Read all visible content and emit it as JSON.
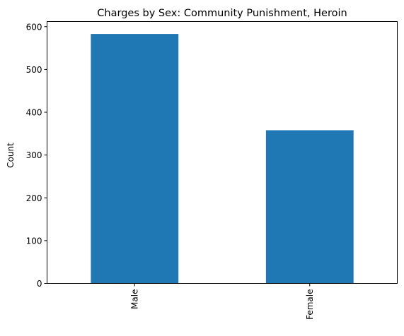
{
  "chart_data": {
    "type": "bar",
    "title": "Charges by Sex: Community Punishment, Heroin",
    "xlabel": "",
    "ylabel": "Count",
    "categories": [
      "Male",
      "Female"
    ],
    "values": [
      583,
      358
    ],
    "ylim": [
      0,
      612
    ],
    "yticks": [
      0,
      100,
      200,
      300,
      400,
      500,
      600
    ],
    "grid": false,
    "legend": "none",
    "bar_color": "#1f77b4"
  }
}
